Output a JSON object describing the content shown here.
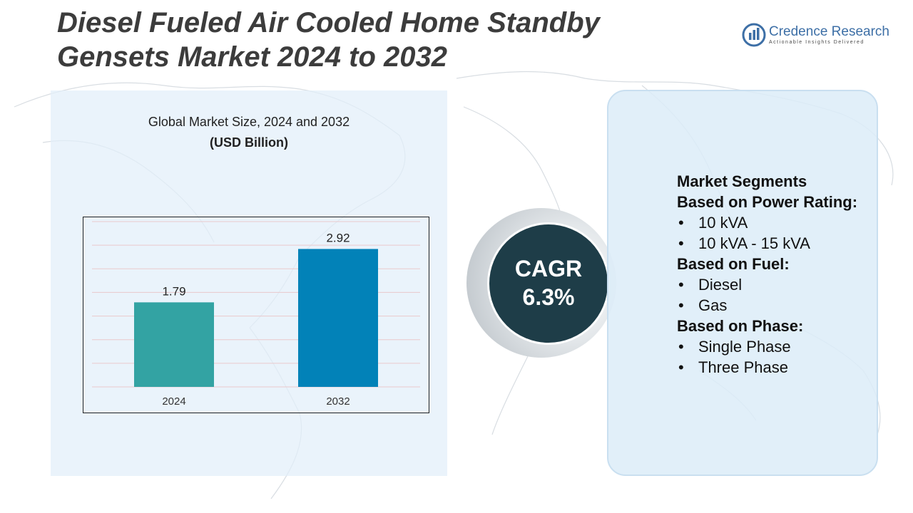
{
  "title": "Diesel Fueled Air Cooled Home Standby Gensets Market 2024 to 2032",
  "logo": {
    "name": "Credence Research",
    "tagline": "Actionable Insights Delivered",
    "icon": "bar-chart-logo-icon",
    "color": "#3d6fa6"
  },
  "chart_data": {
    "type": "bar",
    "title": "Global Market Size, 2024 and 2032",
    "subtitle": "(USD Billion)",
    "categories": [
      "2024",
      "2032"
    ],
    "values": [
      1.79,
      2.92
    ],
    "value_labels": [
      "1.79",
      "2.92"
    ],
    "colors": [
      "#33a3a3",
      "#0282b8"
    ],
    "ylim": [
      0,
      3.5
    ],
    "grid": true,
    "legend": "none"
  },
  "cagr": {
    "label": "CAGR",
    "value": "6.3%"
  },
  "segments": {
    "heading": "Market Segments",
    "groups": [
      {
        "title": "Based on Power Rating:",
        "items": [
          "10 kVA",
          "10 kVA - 15 kVA"
        ]
      },
      {
        "title": "Based on Fuel:",
        "items": [
          "Diesel",
          "Gas"
        ]
      },
      {
        "title": "Based on Phase:",
        "items": [
          "Single Phase",
          "Three Phase"
        ]
      }
    ]
  }
}
